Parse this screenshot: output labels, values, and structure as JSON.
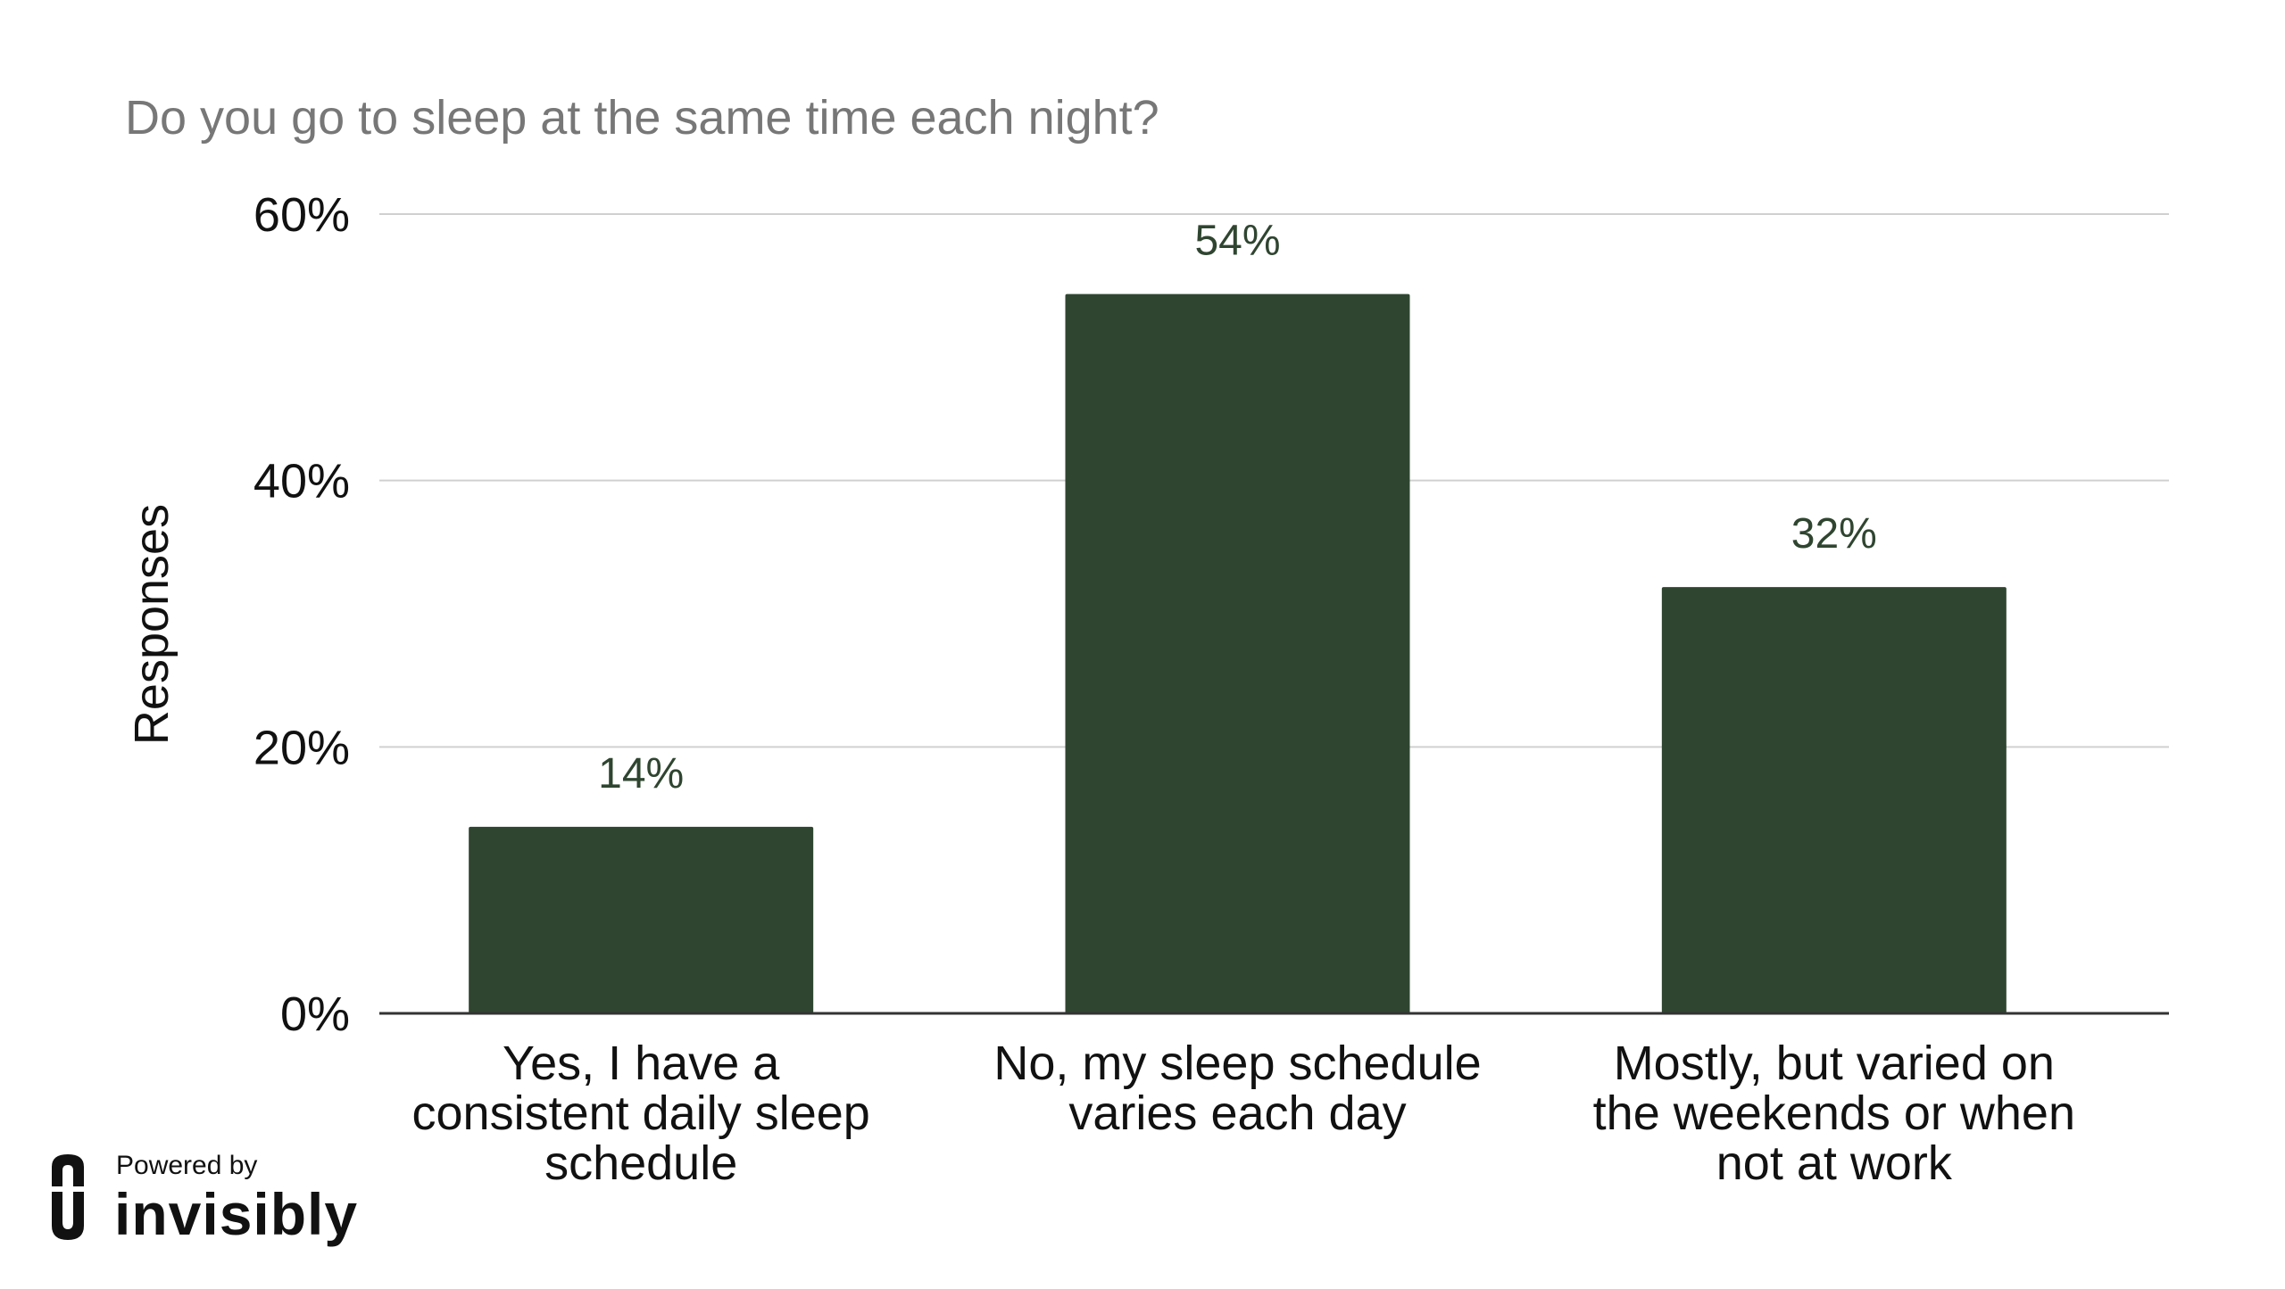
{
  "chart_data": {
    "type": "bar",
    "title": "Do you go to sleep at the same time each night?",
    "ylabel": "Responses",
    "xlabel": "",
    "categories": [
      [
        "Yes, I have a",
        "consistent daily sleep",
        "schedule"
      ],
      [
        "No, my sleep schedule",
        "varies each day"
      ],
      [
        "Mostly, but varied on",
        "the weekends or when",
        "not at work"
      ]
    ],
    "values": [
      14,
      54,
      32
    ],
    "value_labels": [
      "14%",
      "54%",
      "32%"
    ],
    "ylim": [
      0,
      60
    ],
    "yticks": [
      0,
      20,
      40,
      60
    ],
    "ytick_labels": [
      "0%",
      "20%",
      "40%",
      "60%"
    ],
    "grid": true,
    "colors": {
      "bar": "#2f4530",
      "title": "#777777",
      "grid": "#d0d0d0",
      "axis": "#333333",
      "value_label": "#2f4530"
    }
  },
  "branding": {
    "powered_by": "Powered by",
    "name": "invisibly",
    "icon": "invisibly-logo-icon"
  }
}
